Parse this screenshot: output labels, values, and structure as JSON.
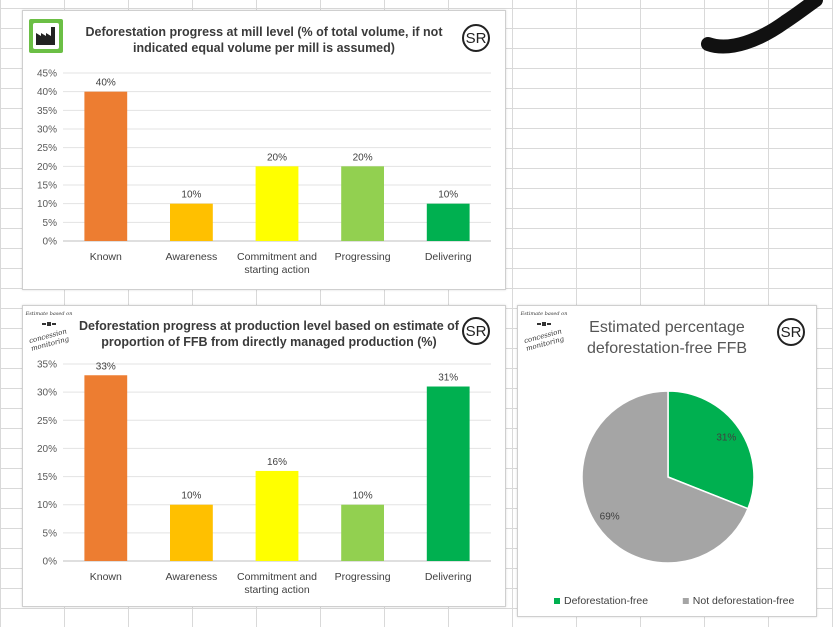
{
  "badge": "SR",
  "stamp": {
    "small": "Estimate based on",
    "big": "concession monitoring"
  },
  "chart_data": [
    {
      "type": "bar",
      "title": "Deforestation progress at mill level (% of total volume, if not indicated equal volume per mill is assumed)",
      "categories": [
        "Known",
        "Awareness",
        "Commitment and starting action",
        "Progressing",
        "Delivering"
      ],
      "values": [
        40,
        10,
        20,
        20,
        10
      ],
      "data_labels": [
        "40%",
        "10%",
        "20%",
        "20%",
        "10%"
      ],
      "ylim": [
        0,
        45
      ],
      "yticks": [
        "0%",
        "5%",
        "10%",
        "15%",
        "20%",
        "25%",
        "30%",
        "35%",
        "40%",
        "45%"
      ],
      "colors": [
        "#ed7d31",
        "#ffc000",
        "#ffff00",
        "#92d050",
        "#00b050"
      ],
      "grid": true
    },
    {
      "type": "bar",
      "title": "Deforestation progress at production level based on estimate of proportion of FFB from directly managed production (%)",
      "categories": [
        "Known",
        "Awareness",
        "Commitment and starting action",
        "Progressing",
        "Delivering"
      ],
      "values": [
        33,
        10,
        16,
        10,
        31
      ],
      "data_labels": [
        "33%",
        "10%",
        "16%",
        "10%",
        "31%"
      ],
      "ylim": [
        0,
        35
      ],
      "yticks": [
        "0%",
        "5%",
        "10%",
        "15%",
        "20%",
        "25%",
        "30%",
        "35%"
      ],
      "colors": [
        "#ed7d31",
        "#ffc000",
        "#ffff00",
        "#92d050",
        "#00b050"
      ],
      "grid": true
    },
    {
      "type": "pie",
      "title": "Estimated percentage deforestation-free FFB",
      "labels": [
        "Deforestation-free",
        "Not deforestation-free"
      ],
      "values": [
        31,
        69
      ],
      "data_labels": [
        "31%",
        "69%"
      ],
      "colors": [
        "#00b050",
        "#a5a5a5"
      ],
      "legend": "bottom"
    }
  ]
}
